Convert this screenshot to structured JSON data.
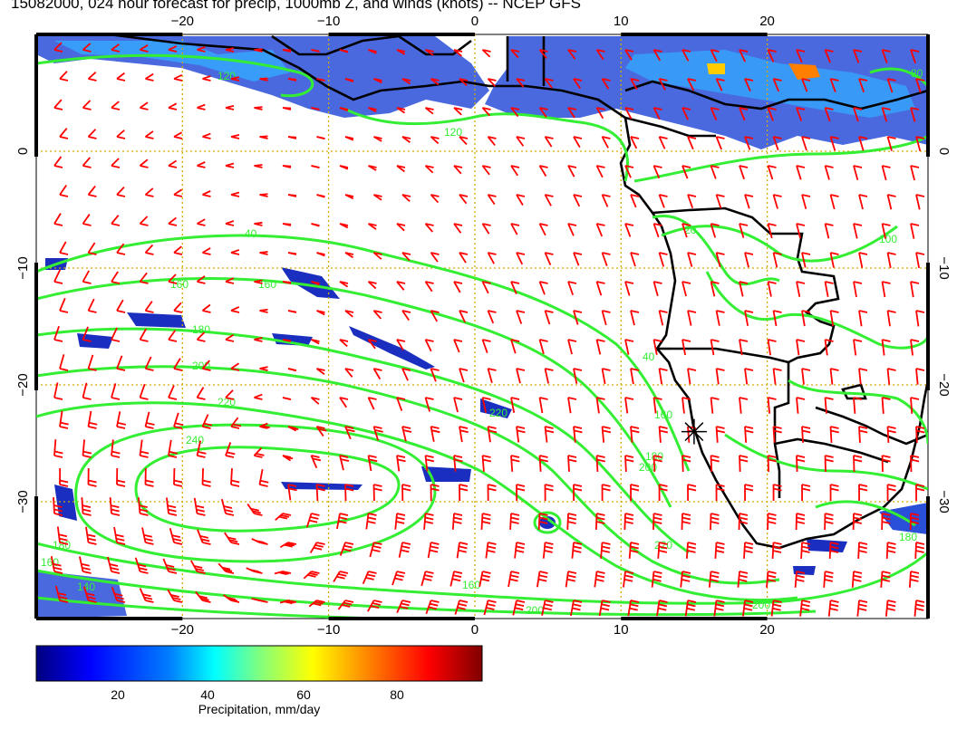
{
  "title": "15082000, 024 hour forecast for precip, 1000mb Z, and winds (knots) -- NCEP GFS",
  "axes": {
    "x_ticks": [
      "−20",
      "−10",
      "0",
      "10",
      "20"
    ],
    "x_values": [
      -20,
      -10,
      0,
      10,
      20
    ],
    "y_ticks": [
      "0",
      "−10",
      "−20",
      "−30"
    ],
    "y_values": [
      0,
      -10,
      -20,
      -30
    ],
    "lon_range": [
      -30,
      31
    ],
    "lat_range": [
      10,
      -40
    ],
    "grid": true
  },
  "colorbar": {
    "label": "Precipitation, mm/day",
    "ticks": [
      "20",
      "40",
      "60",
      "80"
    ],
    "tick_values": [
      20,
      40,
      60,
      80
    ],
    "range": [
      0,
      100
    ],
    "colors": [
      "#00007f",
      "#0000ff",
      "#007fff",
      "#00ffff",
      "#7fff7f",
      "#ffff00",
      "#ff7f00",
      "#ff0000",
      "#7f0000"
    ]
  },
  "contour_labels": [
    "120",
    "120",
    "80",
    "40",
    "160",
    "160",
    "180",
    "200",
    "220",
    "240",
    "40",
    "160",
    "180",
    "220",
    "200",
    "180",
    "160",
    "140",
    "200",
    "220",
    "180",
    "200",
    "160",
    "100",
    "20"
  ],
  "colors": {
    "contour": "#33ee33",
    "barbs": "#ff0000",
    "grid": "#ccaa00",
    "coast": "#000000"
  },
  "marker": {
    "lon": 15,
    "lat": -24
  }
}
